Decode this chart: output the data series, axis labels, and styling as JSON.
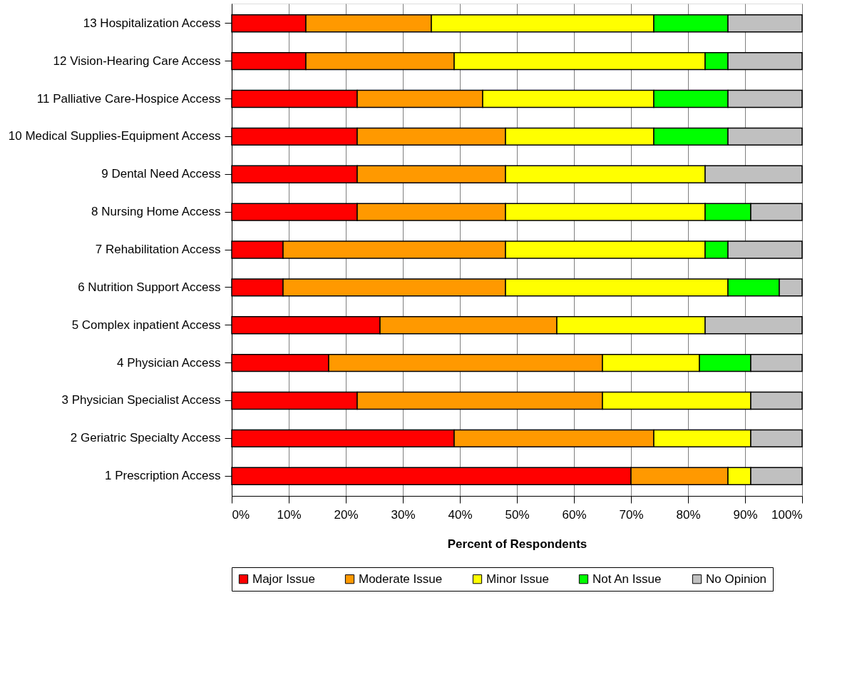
{
  "chart_data": {
    "type": "bar",
    "orientation": "horizontal",
    "stacked": true,
    "categories": [
      "13  Hospitalization Access",
      "12  Vision-Hearing Care Access",
      "11 Palliative Care-Hospice Access",
      "10  Medical Supplies-Equipment Access",
      "9 Dental Need Access",
      "8 Nursing Home Access",
      "7  Rehabilitation Access",
      "6 Nutrition Support Access",
      "5  Complex inpatient Access",
      "4  Physician Access",
      "3  Physician Specialist Access",
      "2  Geriatric Specialty Access",
      "1  Prescription Access"
    ],
    "series": [
      {
        "name": "Major Issue",
        "color": "#ff0000",
        "values": [
          13,
          13,
          22,
          22,
          22,
          22,
          9,
          9,
          26,
          17,
          22,
          39,
          70
        ]
      },
      {
        "name": "Moderate Issue",
        "color": "#ff9900",
        "values": [
          22,
          26,
          22,
          26,
          26,
          26,
          39,
          39,
          31,
          48,
          43,
          35,
          17
        ]
      },
      {
        "name": "Minor Issue",
        "color": "#ffff00",
        "values": [
          39,
          44,
          30,
          26,
          35,
          35,
          35,
          39,
          26,
          17,
          26,
          17,
          4
        ]
      },
      {
        "name": "Not An Issue",
        "color": "#00ff00",
        "values": [
          13,
          4,
          13,
          13,
          null,
          8,
          4,
          9,
          null,
          9,
          null,
          null,
          null
        ]
      },
      {
        "name": "No Opinion",
        "color": "#c0c0c0",
        "values": [
          13,
          13,
          13,
          13,
          17,
          9,
          13,
          4,
          17,
          9,
          9,
          9,
          9
        ]
      }
    ],
    "xlabel": "Percent of Respondents",
    "xlim": [
      0,
      100
    ],
    "xticks": [
      {
        "value": 0,
        "label": "0%"
      },
      {
        "value": 10,
        "label": "10%"
      },
      {
        "value": 20,
        "label": "20%"
      },
      {
        "value": 30,
        "label": "30%"
      },
      {
        "value": 40,
        "label": "40%"
      },
      {
        "value": 50,
        "label": "50%"
      },
      {
        "value": 60,
        "label": "60%"
      },
      {
        "value": 70,
        "label": "70%"
      },
      {
        "value": 80,
        "label": "80%"
      },
      {
        "value": 90,
        "label": "90%"
      },
      {
        "value": 100,
        "label": "100%"
      }
    ],
    "grid": "x",
    "legend": "bottom"
  }
}
